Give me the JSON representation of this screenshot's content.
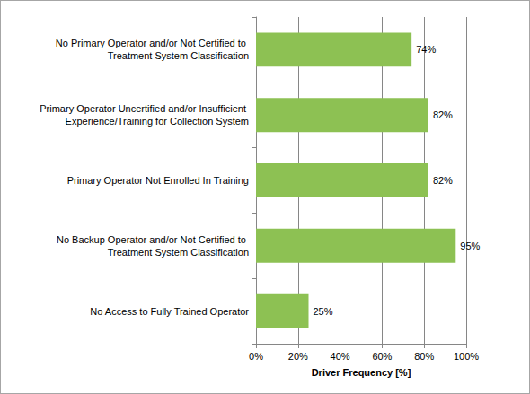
{
  "chart_data": {
    "type": "bar",
    "orientation": "horizontal",
    "categories": [
      "No Primary Operator and/or Not Certified to Treatment System Classification",
      "Primary Operator Uncertified and/or Insufficient Experience/Training for Collection System",
      "Primary Operator Not Enrolled In Training",
      "No Backup Operator and/or Not Certified to Treatment System Classification",
      "No Access to Fully Trained Operator"
    ],
    "values": [
      74,
      82,
      82,
      95,
      25
    ],
    "value_labels": [
      "74%",
      "82%",
      "82%",
      "95%",
      "25%"
    ],
    "data_labels": true,
    "color": "#8dc153",
    "x_label": "Driver Frequency [%]",
    "xlim": [
      0,
      100
    ],
    "xticks": [
      {
        "value": 0,
        "label": "0%"
      },
      {
        "value": 20,
        "label": "20%"
      },
      {
        "value": 40,
        "label": "40%"
      },
      {
        "value": 60,
        "label": "60%"
      },
      {
        "value": 80,
        "label": "80%"
      },
      {
        "value": 100,
        "label": "100%"
      }
    ],
    "grid": true
  }
}
